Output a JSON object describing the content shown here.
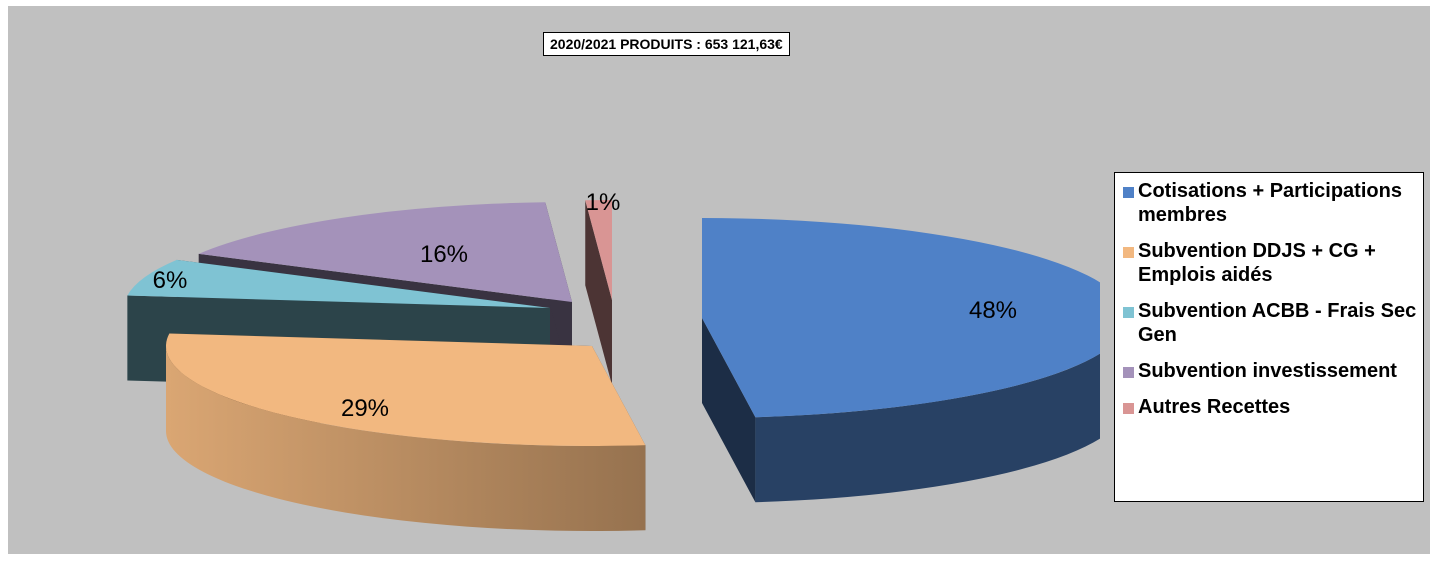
{
  "chart_data": {
    "type": "pie",
    "title": "2020/2021 PRODUITS : 653 121,63€",
    "slices": [
      {
        "name": "Cotisations + Participations membres",
        "value": 48,
        "label": "48%",
        "color": "#4f81c7"
      },
      {
        "name": "Subvention DDJS + CG + Emplois aidés",
        "value": 29,
        "label": "29%",
        "color": "#f2b880"
      },
      {
        "name": "Subvention ACBB - Frais Sec Gen",
        "value": 6,
        "label": "6%",
        "color": "#7fc3d3"
      },
      {
        "name": "Subvention investissement",
        "value": 16,
        "label": "16%",
        "color": "#a492ba"
      },
      {
        "name": "Autres Recettes",
        "value": 1,
        "label": "1%",
        "color": "#d99594"
      }
    ],
    "legend_position": "right",
    "three_d": true,
    "exploded": true
  }
}
